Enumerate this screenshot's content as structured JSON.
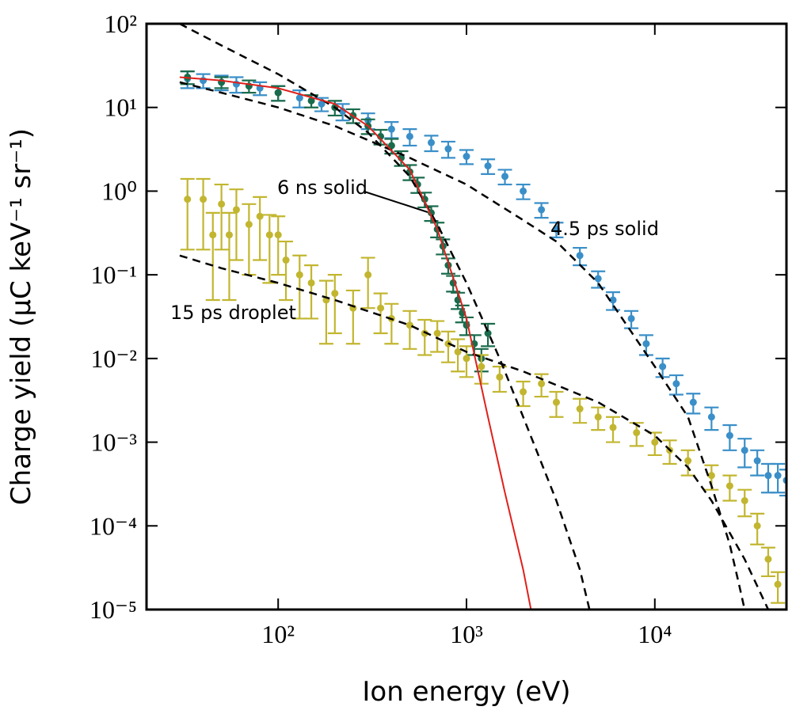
{
  "chart_data": {
    "type": "scatter",
    "x_label": "Ion energy (eV)",
    "y_label": "Charge yield (μC keV⁻¹ sr⁻¹)",
    "log_x": true,
    "log_y": true,
    "xlim": [
      20,
      50000
    ],
    "ylim": [
      1e-05,
      100
    ],
    "xticks": [
      {
        "value": 100,
        "label": "10²"
      },
      {
        "value": 1000,
        "label": "10³"
      },
      {
        "value": 10000,
        "label": "10⁴"
      }
    ],
    "yticks": [
      {
        "value": 100,
        "label": "10²"
      },
      {
        "value": 10,
        "label": "10¹"
      },
      {
        "value": 1,
        "label": "10⁰"
      },
      {
        "value": 0.1,
        "label": "10⁻¹"
      },
      {
        "value": 0.01,
        "label": "10⁻²"
      },
      {
        "value": 0.001,
        "label": "10⁻³"
      },
      {
        "value": 0.0001,
        "label": "10⁻⁴"
      },
      {
        "value": 1e-05,
        "label": "10⁻⁵"
      }
    ],
    "series": [
      {
        "name": "4.5 ps solid",
        "style": "errorbar",
        "color": "#3a8fc8",
        "x": [
          33,
          40,
          50,
          60,
          80,
          100,
          130,
          170,
          220,
          300,
          400,
          500,
          650,
          800,
          1000,
          1300,
          1600,
          2000,
          2500,
          3000,
          4000,
          5000,
          6000,
          7500,
          9000,
          11000,
          13000,
          16000,
          20000,
          25000,
          30000,
          35000,
          40000,
          45000,
          50000
        ],
        "values": [
          22,
          21,
          20,
          19,
          17,
          15,
          13,
          11,
          9,
          7,
          5.5,
          4.5,
          3.8,
          3.2,
          2.6,
          2.0,
          1.5,
          1.0,
          0.6,
          0.35,
          0.17,
          0.09,
          0.05,
          0.03,
          0.015,
          0.008,
          0.005,
          0.003,
          0.002,
          0.0012,
          0.0008,
          0.0006,
          0.0004,
          0.0004,
          0.00035
        ],
        "errors": [
          5,
          4,
          4,
          4,
          3,
          3,
          3,
          2,
          2,
          1.5,
          1.2,
          1,
          0.8,
          0.7,
          0.5,
          0.4,
          0.3,
          0.2,
          0.12,
          0.07,
          0.04,
          0.02,
          0.012,
          0.007,
          0.004,
          0.002,
          0.0013,
          0.0008,
          0.0006,
          0.0004,
          0.0003,
          0.0002,
          0.00015,
          0.00015,
          0.00012
        ]
      },
      {
        "name": "6 ns solid",
        "style": "errorbar",
        "color": "#1a6b4c",
        "x": [
          33,
          50,
          70,
          100,
          150,
          200,
          250,
          300,
          350,
          400,
          450,
          500,
          550,
          600,
          650,
          700,
          750,
          800,
          850,
          900,
          950,
          1000,
          1100,
          1200,
          1300
        ],
        "values": [
          23,
          20,
          18,
          15,
          12,
          10,
          8,
          6,
          4.5,
          3.5,
          2.5,
          1.7,
          1.2,
          0.8,
          0.55,
          0.35,
          0.22,
          0.13,
          0.08,
          0.05,
          0.035,
          0.025,
          0.015,
          0.01,
          0.02
        ],
        "errors": [
          4,
          3,
          3,
          3,
          2,
          2,
          1.5,
          1.2,
          0.9,
          0.7,
          0.5,
          0.35,
          0.25,
          0.16,
          0.11,
          0.07,
          0.045,
          0.027,
          0.017,
          0.011,
          0.008,
          0.006,
          0.004,
          0.003,
          0.006
        ]
      },
      {
        "name": "15 ps droplet",
        "style": "errorbar",
        "color": "#c2b630",
        "x": [
          33,
          40,
          45,
          50,
          55,
          60,
          70,
          80,
          90,
          100,
          110,
          130,
          150,
          180,
          200,
          250,
          300,
          350,
          400,
          500,
          600,
          700,
          800,
          900,
          1000,
          1200,
          1500,
          2000,
          2500,
          3000,
          4000,
          5000,
          6000,
          8000,
          10000,
          12000,
          15000,
          20000,
          25000,
          30000,
          35000,
          40000,
          45000
        ],
        "values": [
          0.8,
          0.8,
          0.3,
          0.7,
          0.3,
          0.6,
          0.4,
          0.5,
          0.3,
          0.3,
          0.15,
          0.1,
          0.08,
          0.05,
          0.06,
          0.04,
          0.1,
          0.04,
          0.03,
          0.025,
          0.02,
          0.02,
          0.015,
          0.012,
          0.01,
          0.008,
          0.006,
          0.004,
          0.005,
          0.003,
          0.0025,
          0.002,
          0.0015,
          0.0013,
          0.001,
          0.0008,
          0.0006,
          0.0004,
          0.0003,
          0.0002,
          0.0001,
          4e-05,
          2e-05
        ],
        "errors": [
          0.6,
          0.6,
          0.25,
          0.5,
          0.25,
          0.45,
          0.3,
          0.35,
          0.22,
          0.2,
          0.1,
          0.07,
          0.05,
          0.035,
          0.04,
          0.025,
          0.06,
          0.02,
          0.015,
          0.012,
          0.009,
          0.008,
          0.006,
          0.005,
          0.004,
          0.003,
          0.002,
          0.0013,
          0.0015,
          0.001,
          0.0008,
          0.0006,
          0.0005,
          0.0004,
          0.0003,
          0.00025,
          0.0002,
          0.00013,
          0.0001,
          7e-05,
          4e-05,
          1.5e-05,
          8e-06
        ]
      },
      {
        "style": "dashed",
        "color": "#000000",
        "x": [
          30,
          50,
          100,
          200,
          300,
          500,
          700,
          1000,
          1500,
          2000,
          3000,
          4000,
          4500
        ],
        "values": [
          100,
          55,
          25,
          10,
          5,
          1.5,
          0.4,
          0.08,
          0.01,
          0.002,
          0.0002,
          3e-05,
          1e-05
        ]
      },
      {
        "style": "dashed",
        "color": "#000000",
        "x": [
          30,
          50,
          100,
          200,
          500,
          1000,
          2000,
          3000,
          5000,
          10000,
          15000,
          20000,
          25000,
          28000,
          30000
        ],
        "values": [
          20,
          15,
          10,
          6,
          2.5,
          1.2,
          0.45,
          0.25,
          0.08,
          0.008,
          0.002,
          0.0003,
          6e-05,
          2e-05,
          1e-05
        ]
      },
      {
        "style": "dashed",
        "color": "#000000",
        "x": [
          30,
          50,
          100,
          200,
          500,
          1000,
          2000,
          5000,
          10000,
          15000,
          20000,
          30000,
          40000
        ],
        "values": [
          0.17,
          0.12,
          0.08,
          0.05,
          0.025,
          0.012,
          0.007,
          0.003,
          0.0012,
          0.0005,
          0.0002,
          4e-05,
          1e-05
        ]
      },
      {
        "style": "solid",
        "color": "#e0201c",
        "x": [
          30,
          50,
          100,
          200,
          300,
          500,
          700,
          1000,
          1300,
          1600,
          2000,
          2200
        ],
        "values": [
          23,
          21,
          17,
          11,
          6,
          1.8,
          0.35,
          0.03,
          0.002,
          0.00025,
          3e-05,
          1e-05
        ]
      }
    ]
  }
}
